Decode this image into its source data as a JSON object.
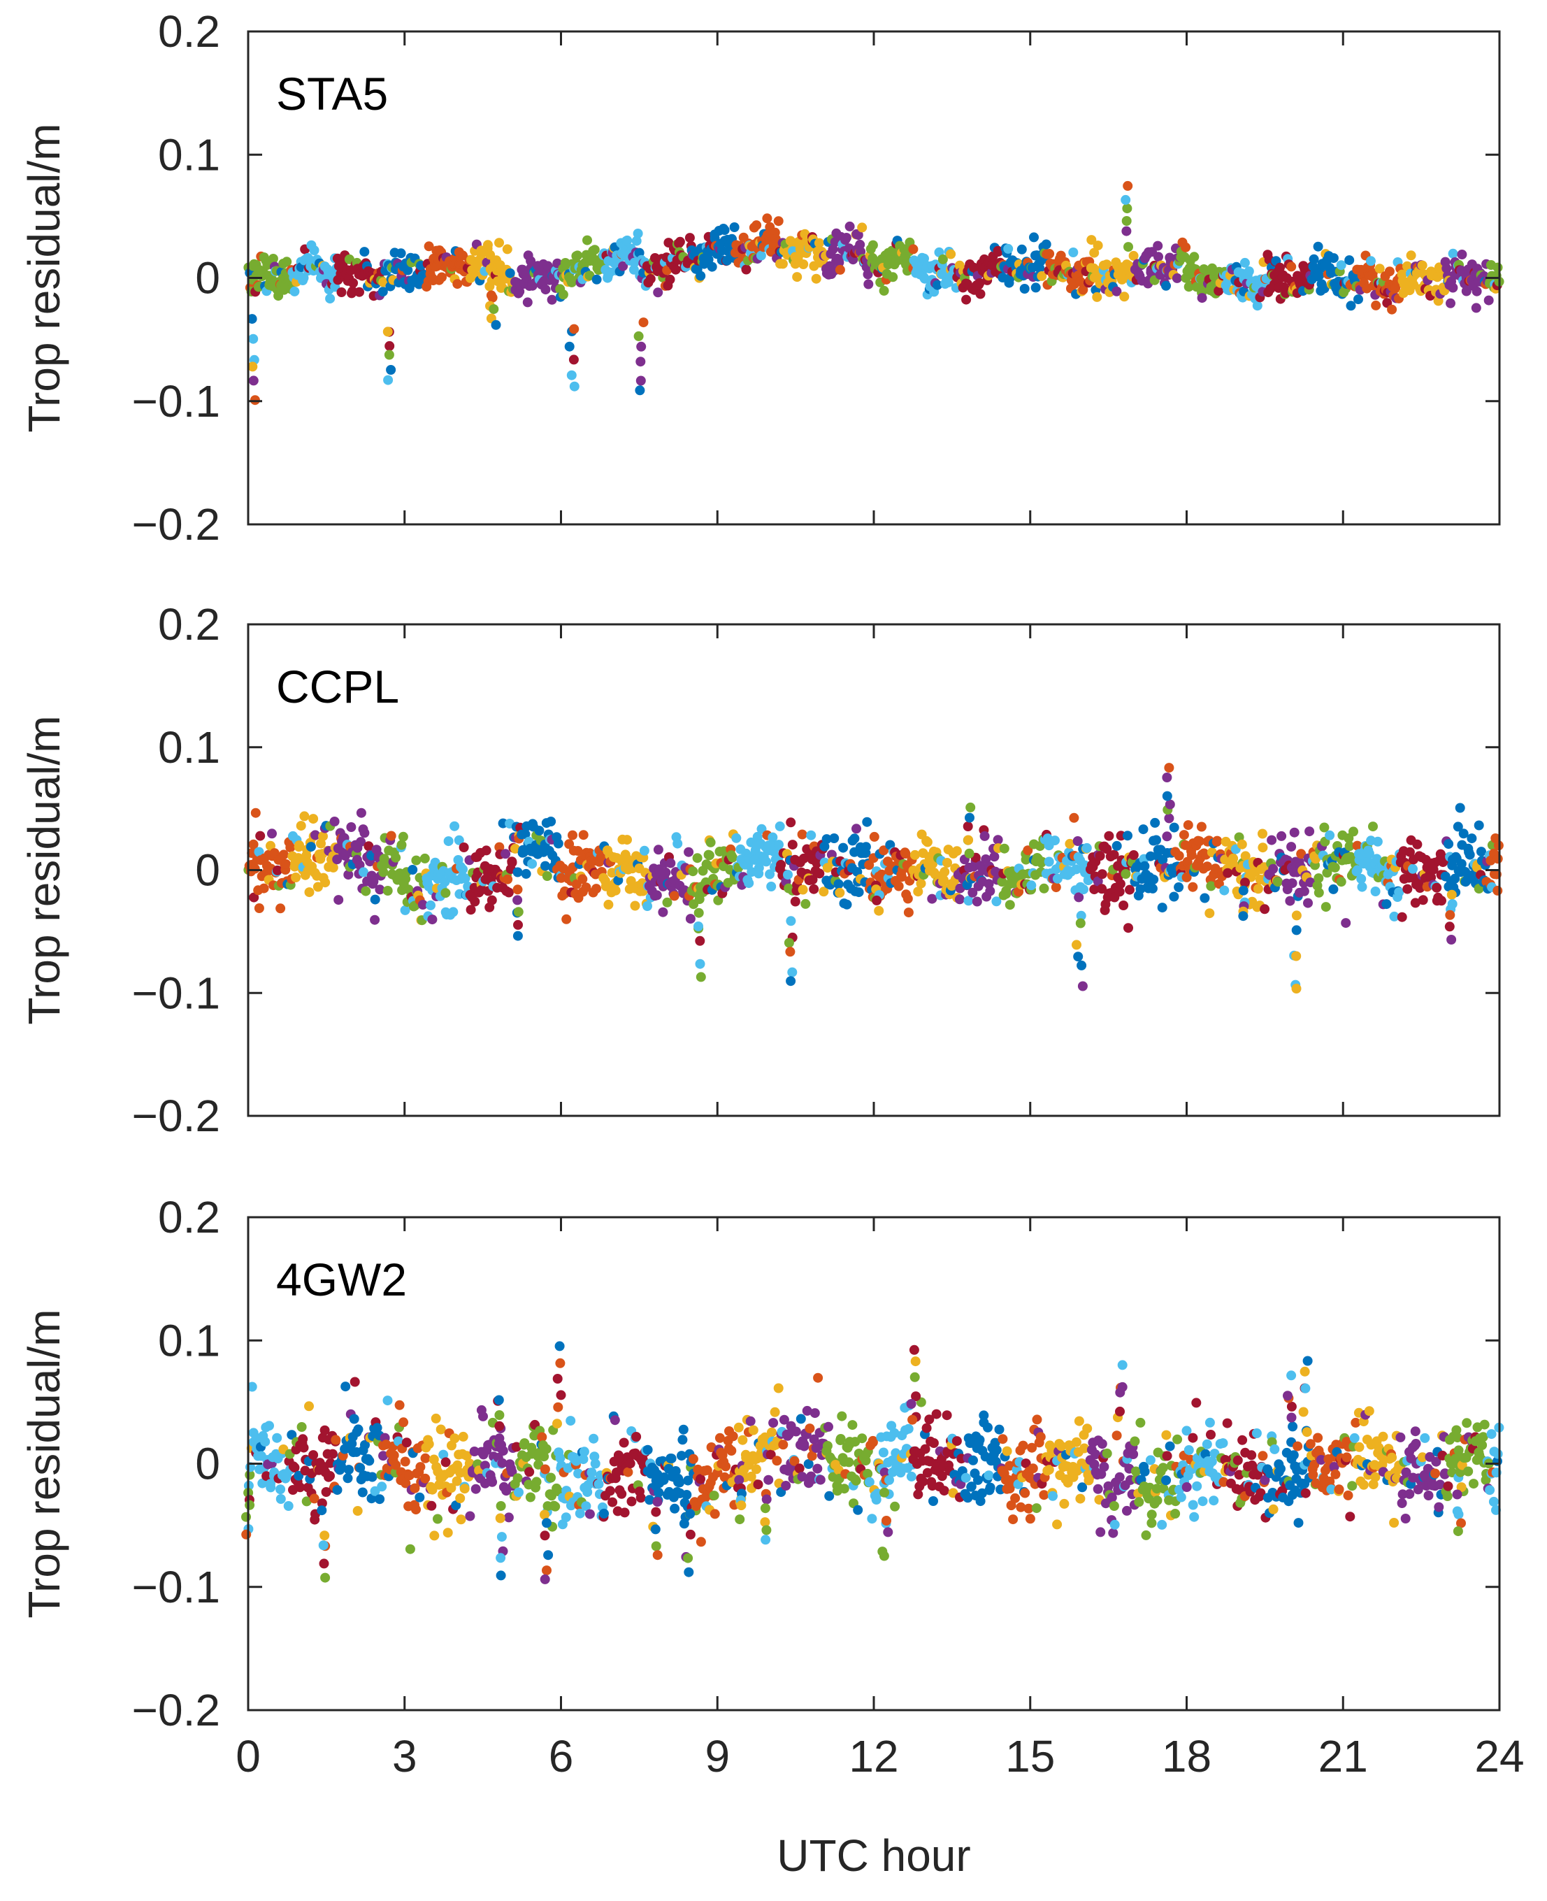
{
  "chart_data": [
    {
      "type": "scatter",
      "title": "STA5",
      "xlabel": "",
      "ylabel": "Trop residual/m",
      "xlim": [
        0,
        24
      ],
      "ylim": [
        -0.2,
        0.2
      ],
      "xticks": [
        "0",
        "3",
        "6",
        "9",
        "12",
        "15",
        "18",
        "21",
        "24"
      ],
      "yticks": [
        "0.2",
        "0.1",
        "0",
        "−0.1",
        "−0.2"
      ],
      "series_colors": [
        "#0072BD",
        "#D95319",
        "#EDB120",
        "#7E2F8E",
        "#77AC30",
        "#4DBEEE",
        "#A2142F"
      ],
      "seed": 11,
      "spread": 0.008,
      "spikes": 6,
      "segments": [
        [
          0,
          2.2,
          0.003
        ],
        [
          2.2,
          4.5,
          0.007
        ],
        [
          4.5,
          6.5,
          0.004
        ],
        [
          6.5,
          8.2,
          0.012
        ],
        [
          8.2,
          9.8,
          0.022
        ],
        [
          9.8,
          11.8,
          0.025
        ],
        [
          11.8,
          15,
          0.008
        ],
        [
          15,
          18,
          0.006
        ],
        [
          18,
          21,
          -0.001
        ],
        [
          21,
          24,
          -0.002
        ]
      ]
    },
    {
      "type": "scatter",
      "title": "CCPL",
      "xlabel": "",
      "ylabel": "Trop residual/m",
      "xlim": [
        0,
        24
      ],
      "ylim": [
        -0.2,
        0.2
      ],
      "xticks": [
        "0",
        "3",
        "6",
        "9",
        "12",
        "15",
        "18",
        "21",
        "24"
      ],
      "yticks": [
        "0.2",
        "0.1",
        "0",
        "−0.1",
        "−0.2"
      ],
      "series_colors": [
        "#0072BD",
        "#D95319",
        "#EDB120",
        "#7E2F8E",
        "#77AC30",
        "#4DBEEE",
        "#A2142F"
      ],
      "seed": 29,
      "spread": 0.014,
      "spikes": 10,
      "segments": [
        [
          0,
          3,
          0.006
        ],
        [
          3,
          5,
          -0.012
        ],
        [
          5,
          6,
          0.02
        ],
        [
          6,
          9,
          -0.004
        ],
        [
          9,
          12,
          0.005
        ],
        [
          12,
          15,
          -0.004
        ],
        [
          15,
          18,
          0.002
        ],
        [
          18,
          21,
          0.003
        ],
        [
          21,
          24,
          0.001
        ]
      ]
    },
    {
      "type": "scatter",
      "title": "4GW2",
      "xlabel": "UTC hour",
      "ylabel": "Trop residual/m",
      "xlim": [
        0,
        24
      ],
      "ylim": [
        -0.2,
        0.2
      ],
      "xticks": [
        "0",
        "3",
        "6",
        "9",
        "12",
        "15",
        "18",
        "21",
        "24"
      ],
      "yticks": [
        "0.2",
        "0.1",
        "0",
        "−0.1",
        "−0.2"
      ],
      "series_colors": [
        "#0072BD",
        "#D95319",
        "#EDB120",
        "#7E2F8E",
        "#77AC30",
        "#4DBEEE",
        "#A2142F"
      ],
      "seed": 47,
      "spread": 0.018,
      "spikes": 16,
      "segments": [
        [
          0,
          3,
          0.003
        ],
        [
          3,
          6,
          -0.006
        ],
        [
          6,
          9,
          -0.012
        ],
        [
          9,
          12,
          0.006
        ],
        [
          12,
          15,
          -0.004
        ],
        [
          15,
          18,
          -0.008
        ],
        [
          18,
          21,
          -0.004
        ],
        [
          21,
          24,
          -0.001
        ]
      ]
    }
  ]
}
